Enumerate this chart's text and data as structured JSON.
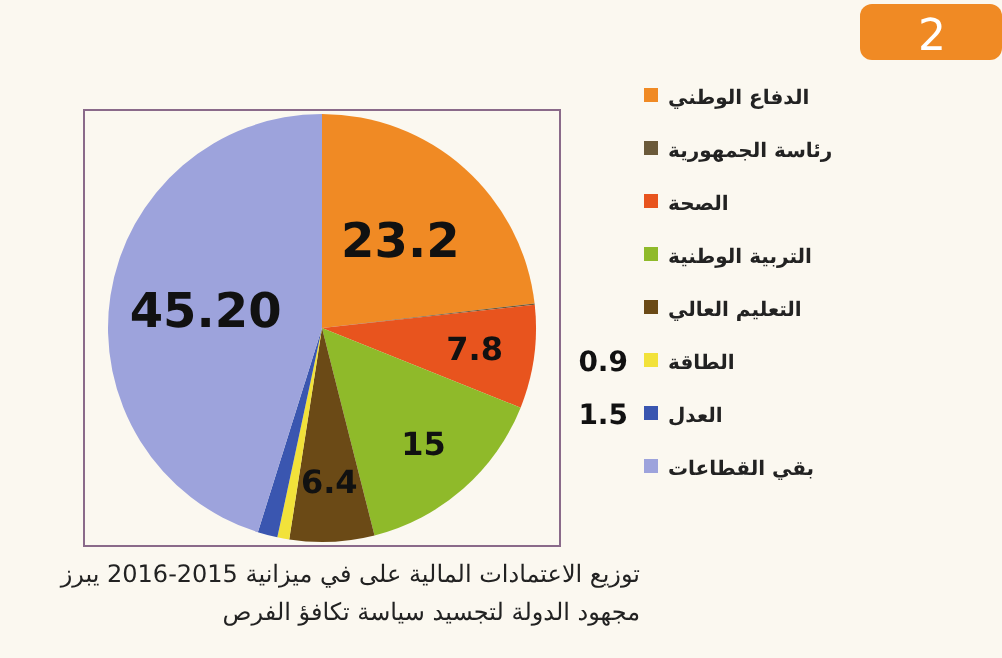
{
  "chart_data": {
    "type": "pie",
    "categories": [
      "الدفاع الوطني",
      "رئاسة الجمهورية",
      "الصحة",
      "التربية الوطنية",
      "التعليم العالي",
      "الطاقة",
      "العدل",
      "بقي القطاعات"
    ],
    "values": [
      23.2,
      0.1,
      7.8,
      15,
      6.4,
      0.9,
      1.5,
      45.2
    ],
    "value_labels": [
      "23.2",
      null,
      "7.8",
      "15",
      "6.4",
      "0.9",
      "1.5",
      "45.20"
    ],
    "colors": [
      "#f08a24",
      "#6b5a3a",
      "#e8541e",
      "#8fba2a",
      "#6b4a16",
      "#f2e23a",
      "#3a56b0",
      "#9da3dc"
    ],
    "legend": "right",
    "annotations": [
      "2",
      "توزيع الاعتمادات المالية على في ميزانية 2015-2016 يبرز مجهود الدولة لتجسيد سياسة تكافؤ الفرص"
    ]
  }
}
